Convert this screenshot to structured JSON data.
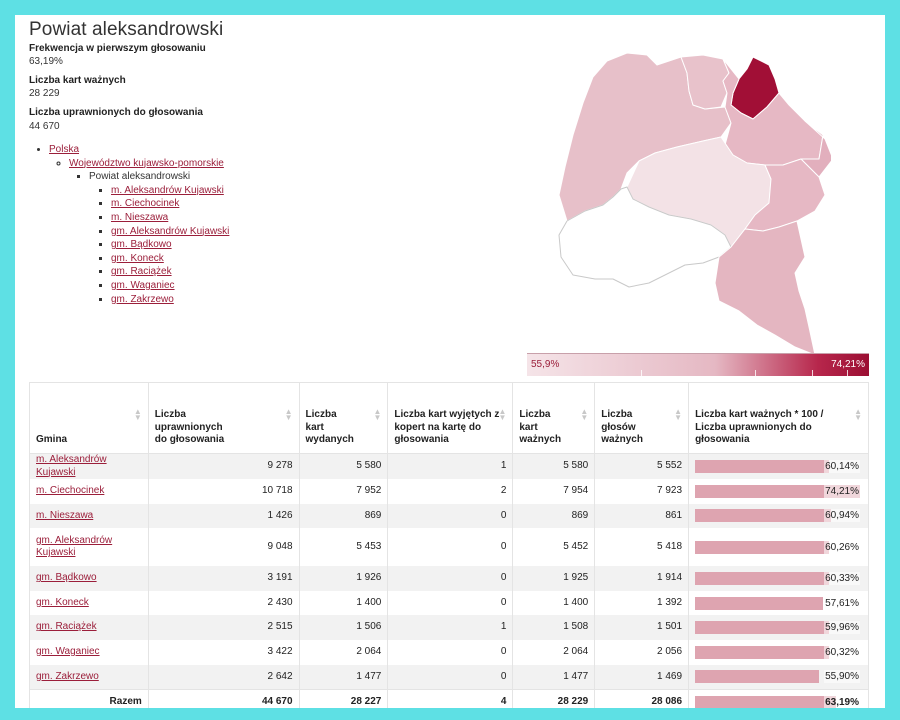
{
  "title": "Powiat aleksandrowski",
  "stats": [
    {
      "label": "Frekwencja w pierwszym głosowaniu",
      "value": "63,19%"
    },
    {
      "label": "Liczba kart ważnych",
      "value": "28 229"
    },
    {
      "label": "Liczba uprawnionych do głosowania",
      "value": "44 670"
    }
  ],
  "breadcrumb": {
    "country": "Polska",
    "voivodeship": "Województwo kujawsko-pomorskie",
    "county": "Powiat aleksandrowski",
    "gminas": [
      "m. Aleksandrów Kujawski",
      "m. Ciechocinek",
      "m. Nieszawa",
      "gm. Aleksandrów Kujawski",
      "gm. Bądkowo",
      "gm. Koneck",
      "gm. Raciążek",
      "gm. Waganiec",
      "gm. Zakrzewo"
    ]
  },
  "legend": {
    "min": "55,9%",
    "max": "74,21%",
    "min_value": 55.9,
    "max_value": 74.21
  },
  "colors": {
    "accent": "#9b1e3a",
    "bar": "#dea4b0",
    "background": "#5ee0e4"
  },
  "table": {
    "headers": [
      "Gmina",
      "Liczba uprawnionych do głosowania",
      "Liczba kart wydanych",
      "Liczba kart wyjętych z kopert na kartę do głosowania",
      "Liczba kart ważnych",
      "Liczba głosów ważnych",
      "Liczba kart ważnych * 100 / Liczba uprawnionych do głosowania"
    ],
    "rows": [
      {
        "name": "m. Aleksandrów Kujawski",
        "uprawnieni": "9 278",
        "wydane": "5 580",
        "wyjete": "1",
        "wazne_karty": "5 580",
        "wazne_glosy": "5 552",
        "frekwencja": "60,14%",
        "frekwencja_value": 60.14
      },
      {
        "name": "m. Ciechocinek",
        "uprawnieni": "10 718",
        "wydane": "7 952",
        "wyjete": "2",
        "wazne_karty": "7 954",
        "wazne_glosy": "7 923",
        "frekwencja": "74,21%",
        "frekwencja_value": 74.21
      },
      {
        "name": "m. Nieszawa",
        "uprawnieni": "1 426",
        "wydane": "869",
        "wyjete": "0",
        "wazne_karty": "869",
        "wazne_glosy": "861",
        "frekwencja": "60,94%",
        "frekwencja_value": 60.94
      },
      {
        "name": "gm. Aleksandrów Kujawski",
        "uprawnieni": "9 048",
        "wydane": "5 453",
        "wyjete": "0",
        "wazne_karty": "5 452",
        "wazne_glosy": "5 418",
        "frekwencja": "60,26%",
        "frekwencja_value": 60.26
      },
      {
        "name": "gm. Bądkowo",
        "uprawnieni": "3 191",
        "wydane": "1 926",
        "wyjete": "0",
        "wazne_karty": "1 925",
        "wazne_glosy": "1 914",
        "frekwencja": "60,33%",
        "frekwencja_value": 60.33
      },
      {
        "name": "gm. Koneck",
        "uprawnieni": "2 430",
        "wydane": "1 400",
        "wyjete": "0",
        "wazne_karty": "1 400",
        "wazne_glosy": "1 392",
        "frekwencja": "57,61%",
        "frekwencja_value": 57.61
      },
      {
        "name": "gm. Raciążek",
        "uprawnieni": "2 515",
        "wydane": "1 506",
        "wyjete": "1",
        "wazne_karty": "1 508",
        "wazne_glosy": "1 501",
        "frekwencja": "59,96%",
        "frekwencja_value": 59.96
      },
      {
        "name": "gm. Waganiec",
        "uprawnieni": "3 422",
        "wydane": "2 064",
        "wyjete": "0",
        "wazne_karty": "2 064",
        "wazne_glosy": "2 056",
        "frekwencja": "60,32%",
        "frekwencja_value": 60.32
      },
      {
        "name": "gm. Zakrzewo",
        "uprawnieni": "2 642",
        "wydane": "1 477",
        "wyjete": "0",
        "wazne_karty": "1 477",
        "wazne_glosy": "1 469",
        "frekwencja": "55,90%",
        "frekwencja_value": 55.9
      }
    ],
    "total": {
      "label": "Razem",
      "uprawnieni": "44 670",
      "wydane": "28 227",
      "wyjete": "4",
      "wazne_karty": "28 229",
      "wazne_glosy": "28 086",
      "frekwencja": "63,19%",
      "frekwencja_value": 63.19
    }
  }
}
